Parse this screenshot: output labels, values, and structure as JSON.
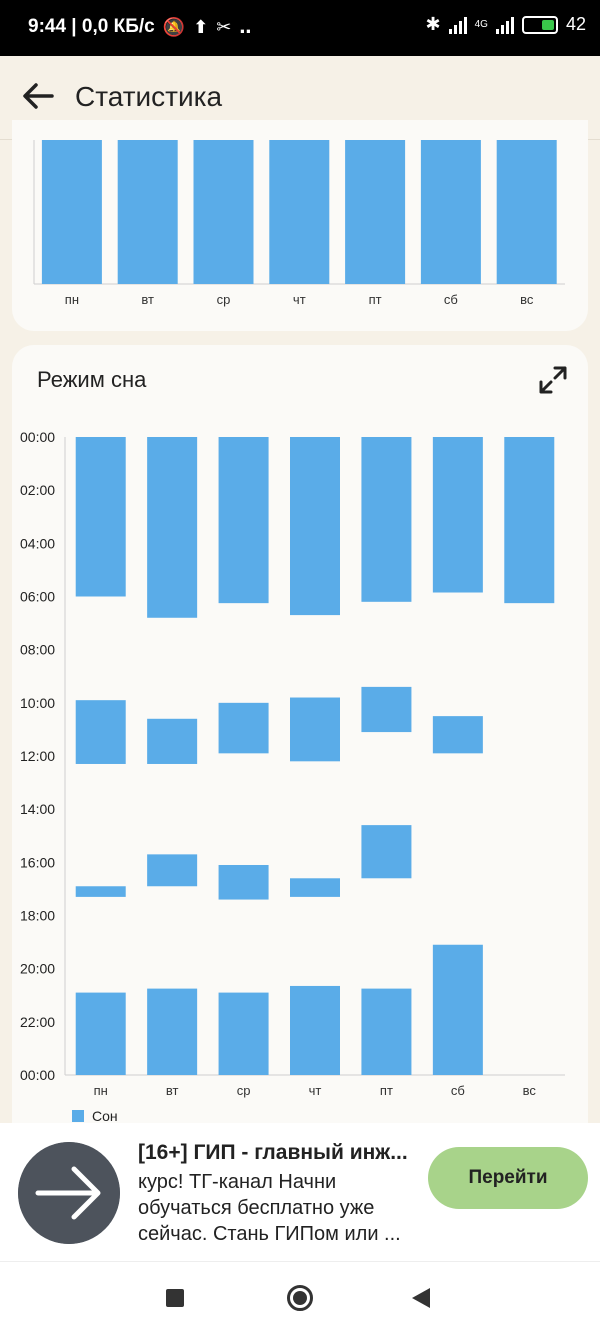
{
  "status_bar": {
    "time_info": "9:44 | 0,0 КБ/с",
    "network": "4G",
    "battery": "42"
  },
  "app_bar": {
    "title": "Статистика"
  },
  "top_chart": {
    "days": [
      "пн",
      "вт",
      "ср",
      "чт",
      "пт",
      "сб",
      "вс"
    ]
  },
  "sleep_card": {
    "title": "Режим сна",
    "legend": "Сон"
  },
  "chart_data": {
    "type": "bar",
    "title": "Режим сна",
    "categories": [
      "пн",
      "вт",
      "ср",
      "чт",
      "пт",
      "сб",
      "вс"
    ],
    "y_ticks": [
      "00:00",
      "02:00",
      "04:00",
      "06:00",
      "08:00",
      "10:00",
      "12:00",
      "14:00",
      "16:00",
      "18:00",
      "20:00",
      "22:00",
      "00:00"
    ],
    "ylim": [
      0,
      24
    ],
    "y_inverted": true,
    "series": [
      {
        "name": "Сон",
        "color": "#5aace8",
        "intervals": [
          [
            [
              0,
              6.0
            ],
            [
              9.9,
              12.3
            ],
            [
              16.9,
              17.3
            ],
            [
              20.9,
              24
            ]
          ],
          [
            [
              0,
              6.8
            ],
            [
              10.6,
              12.3
            ],
            [
              15.7,
              16.9
            ],
            [
              20.75,
              24
            ]
          ],
          [
            [
              0,
              6.25
            ],
            [
              10.0,
              11.9
            ],
            [
              16.1,
              17.4
            ],
            [
              20.9,
              24
            ]
          ],
          [
            [
              0,
              6.7
            ],
            [
              9.8,
              12.2
            ],
            [
              16.6,
              17.3
            ],
            [
              20.65,
              24
            ]
          ],
          [
            [
              0,
              6.2
            ],
            [
              9.4,
              11.1
            ],
            [
              14.6,
              16.6
            ],
            [
              20.75,
              24
            ]
          ],
          [
            [
              0,
              5.85
            ],
            [
              10.5,
              11.9
            ],
            [
              19.1,
              24
            ]
          ],
          [
            [
              0,
              6.25
            ]
          ]
        ]
      }
    ],
    "grid": false,
    "legend_position": "bottom-left"
  },
  "ad": {
    "title": "[16+] ГИП - главный инж...",
    "body": "курс! ТГ-канал Начни обучаться бесплатно уже сейчас. Стань ГИПом или ...",
    "button": "Перейти"
  },
  "colors": {
    "bar": "#5aace8",
    "background": "#f6f1e7",
    "card": "#fbfaf7",
    "ad_button": "#a8d38a"
  }
}
